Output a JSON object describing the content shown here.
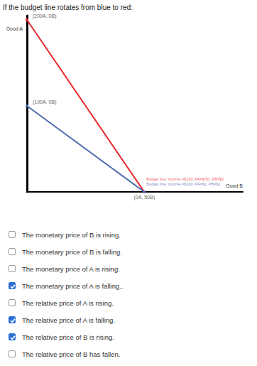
{
  "question": "If the budget line rotates from blue to red:",
  "chart_data": {
    "type": "line",
    "x_label": "Good B",
    "y_label": "Good A",
    "xlim": [
      0,
      92
    ],
    "ylim": [
      0,
      205
    ],
    "tick_labels": false,
    "grid": false,
    "series": [
      {
        "color": "#e8262b",
        "x": [
          0,
          50
        ],
        "values": [
          200,
          0
        ],
        "marker": "circle"
      },
      {
        "color": "#4f6bb0",
        "x": [
          0,
          50
        ],
        "values": [
          100,
          0
        ],
        "marker": "circle"
      }
    ],
    "annotations": [
      {
        "text": "(200A, 0B)",
        "x": 0,
        "y": 200
      },
      {
        "text": "(100A, 0B)",
        "x": 0,
        "y": 100
      },
      {
        "text": "Budget line: income =$100, PA=$.50, PB=$2",
        "x": 50,
        "y": 0,
        "color": "#e8262b"
      },
      {
        "text": "Budget line: income =$100, PA=$1, PB=$2",
        "x": 50,
        "y": 0,
        "color": "#4f6bb0"
      },
      {
        "text": "(0A, 50B)",
        "x": 50,
        "y": 0
      }
    ]
  },
  "options": [
    {
      "text": "The monetary price of B is rising.",
      "checked": false
    },
    {
      "text": "The monetary price of B is falling.",
      "checked": false
    },
    {
      "text": "The monetary price of A is rising.",
      "checked": false
    },
    {
      "text": "The monetary price of A is falling..",
      "checked": true
    },
    {
      "text": "The relative price of A is rising.",
      "checked": false
    },
    {
      "text": "The relative price of A is falling.",
      "checked": true
    },
    {
      "text": "The relative price of B is rising.",
      "checked": true
    },
    {
      "text": "The relative price of B has fallen.",
      "checked": false
    }
  ]
}
